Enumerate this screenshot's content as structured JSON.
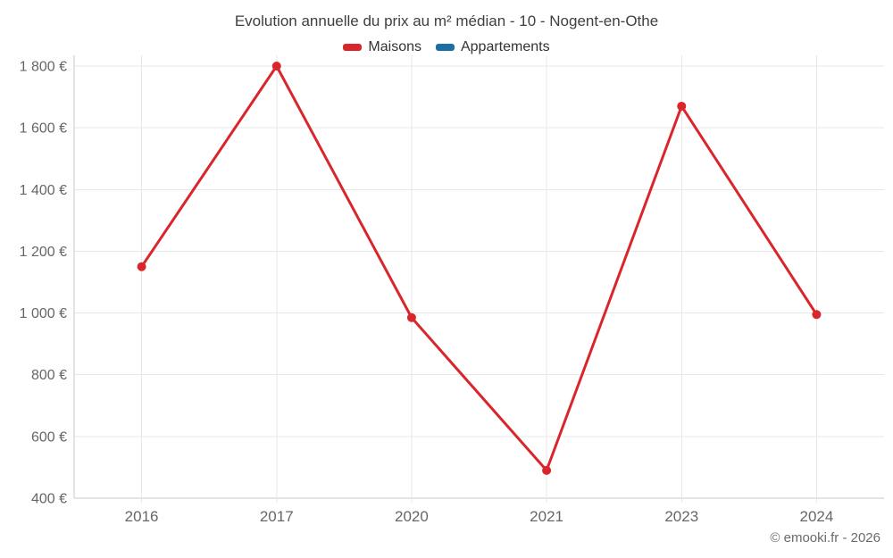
{
  "title": "Evolution annuelle du prix au m² médian - 10 - Nogent-en-Othe",
  "copyright": "© emooki.fr - 2026",
  "colors": {
    "maisons": "#d9262c",
    "appartements": "#1a6fa5",
    "grid": "#e7e7e7",
    "axis": "#c9c9c9",
    "tick_label": "#666666",
    "title": "#3f3f3f",
    "legend_text": "#333333",
    "copyright": "#6b6b6b",
    "background": "#ffffff"
  },
  "chart_data": {
    "type": "line",
    "title": "Evolution annuelle du prix au m² médian - 10 - Nogent-en-Othe",
    "categories": [
      "2016",
      "2017",
      "2020",
      "2021",
      "2023",
      "2024"
    ],
    "series": [
      {
        "name": "Maisons",
        "color": "#d9262c",
        "values": [
          1150,
          1800,
          985,
          490,
          1670,
          995
        ]
      },
      {
        "name": "Appartements",
        "color": "#1a6fa5",
        "values": []
      }
    ],
    "xlabel": "",
    "ylabel": "",
    "ylim": [
      400,
      1800
    ],
    "yticks": [
      {
        "value": 400,
        "label": "400 €"
      },
      {
        "value": 600,
        "label": "600 €"
      },
      {
        "value": 800,
        "label": "800 €"
      },
      {
        "value": 1000,
        "label": "1 000 €"
      },
      {
        "value": 1200,
        "label": "1 200 €"
      },
      {
        "value": 1400,
        "label": "1 400 €"
      },
      {
        "value": 1600,
        "label": "1 600 €"
      },
      {
        "value": 1800,
        "label": "1 800 €"
      }
    ],
    "grid": true,
    "legend_position": "top",
    "currency_suffix": "€"
  }
}
